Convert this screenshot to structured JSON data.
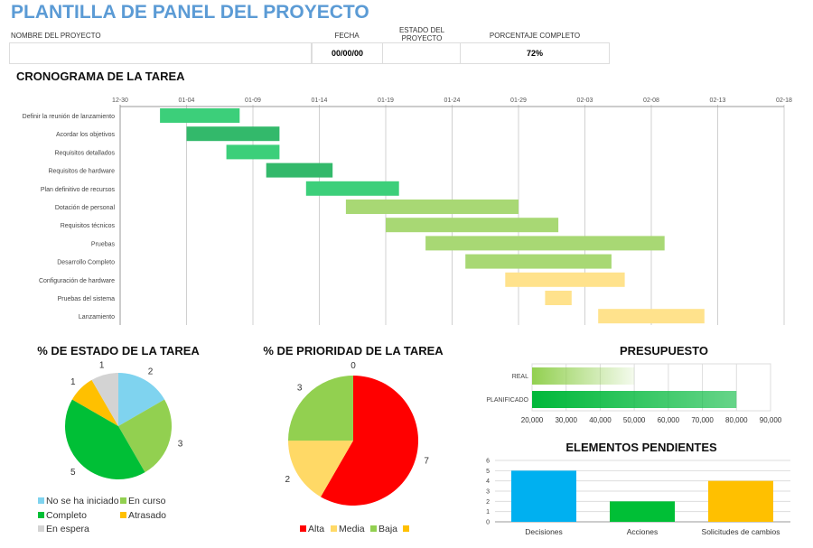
{
  "header": {
    "title": "PLANTILLA DE PANEL DEL PROYECTO",
    "project_name_label": "NOMBRE DEL PROYECTO",
    "project_name": "",
    "date_label": "FECHA",
    "date": "00/00/00",
    "status_label": "ESTADO DEL PROYECTO",
    "status": "",
    "percent_label": "PORCENTAJE COMPLETO",
    "percent": "72%"
  },
  "chart_data": [
    {
      "type": "bar",
      "orientation": "gantt",
      "title": "CRONOGRAMA DE LA TAREA",
      "x_ticks": [
        "12-30",
        "01-04",
        "01-09",
        "01-14",
        "01-19",
        "01-24",
        "01-29",
        "02-03",
        "02-08",
        "02-13",
        "02-18"
      ],
      "xlim": [
        "12-30",
        "02-18"
      ],
      "grid": true,
      "tasks": [
        {
          "name": "Definir la reunión de lanzamiento",
          "start": "01-02",
          "end": "01-08",
          "color": "#3ccf7a"
        },
        {
          "name": "Acordar los objetivos",
          "start": "01-04",
          "end": "01-11",
          "color": "#33b96b"
        },
        {
          "name": "Requisitos detallados",
          "start": "01-07",
          "end": "01-11",
          "color": "#3ccf7a"
        },
        {
          "name": "Requisitos de hardware",
          "start": "01-10",
          "end": "01-15",
          "color": "#33b96b"
        },
        {
          "name": "Plan definitivo de recursos",
          "start": "01-13",
          "end": "01-20",
          "color": "#3ccf7a"
        },
        {
          "name": "Dotación de personal",
          "start": "01-16",
          "end": "01-29",
          "color": "#a8d874"
        },
        {
          "name": "Requisitos técnicos",
          "start": "01-19",
          "end": "02-01",
          "color": "#a8d874"
        },
        {
          "name": "Pruebas",
          "start": "01-22",
          "end": "02-09",
          "color": "#a8d874"
        },
        {
          "name": "Desarrollo Completo",
          "start": "01-25",
          "end": "02-05",
          "color": "#a8d874"
        },
        {
          "name": "Configuración de hardware",
          "start": "01-28",
          "end": "02-06",
          "color": "#ffe28c"
        },
        {
          "name": "Pruebas del sistema",
          "start": "01-31",
          "end": "02-02",
          "color": "#ffe28c"
        },
        {
          "name": "Lanzamiento",
          "start": "02-04",
          "end": "02-12",
          "color": "#ffe28c"
        }
      ]
    },
    {
      "type": "pie",
      "title": "% DE ESTADO DE LA TAREA",
      "legend": "bottom",
      "slices": [
        {
          "name": "No se ha iniciado",
          "value": 2,
          "color": "#7fd3ef"
        },
        {
          "name": "En curso",
          "value": 3,
          "color": "#92d050"
        },
        {
          "name": "Completo",
          "value": 5,
          "color": "#00bf36"
        },
        {
          "name": "Atrasado",
          "value": 1,
          "color": "#ffc000"
        },
        {
          "name": "En espera",
          "value": 1,
          "color": "#d3d3d3"
        }
      ]
    },
    {
      "type": "pie",
      "title": "% DE PRIORIDAD DE LA TAREA",
      "legend": "bottom",
      "slices": [
        {
          "name": "Alta",
          "value": 7,
          "color": "#ff0000"
        },
        {
          "name": "Media",
          "value": 2,
          "color": "#ffd966"
        },
        {
          "name": "Baja",
          "value": 3,
          "color": "#92d050"
        },
        {
          "name": "",
          "value": 0,
          "color": "#ffc000"
        }
      ]
    },
    {
      "type": "bar",
      "orientation": "horizontal",
      "title": "PRESUPUESTO",
      "categories": [
        "REAL",
        "PLANIFICADO"
      ],
      "values": [
        50000,
        80000
      ],
      "xlim": [
        20000,
        90000
      ],
      "x_ticks": [
        "20,000",
        "30,000",
        "40,000",
        "50,000",
        "60,000",
        "70,000",
        "80,000",
        "90,000"
      ],
      "colors": [
        "#92d050",
        "#00b83a"
      ],
      "grid": true
    },
    {
      "type": "bar",
      "title": "ELEMENTOS PENDIENTES",
      "categories": [
        "Decisiones",
        "Acciones",
        "Solicitudes de cambios"
      ],
      "values": [
        5,
        2,
        4
      ],
      "ylim": [
        0,
        6
      ],
      "y_ticks": [
        "0",
        "1",
        "2",
        "3",
        "4",
        "5",
        "6"
      ],
      "colors": [
        "#00b0f0",
        "#00bf36",
        "#ffc000"
      ],
      "grid": true
    }
  ]
}
